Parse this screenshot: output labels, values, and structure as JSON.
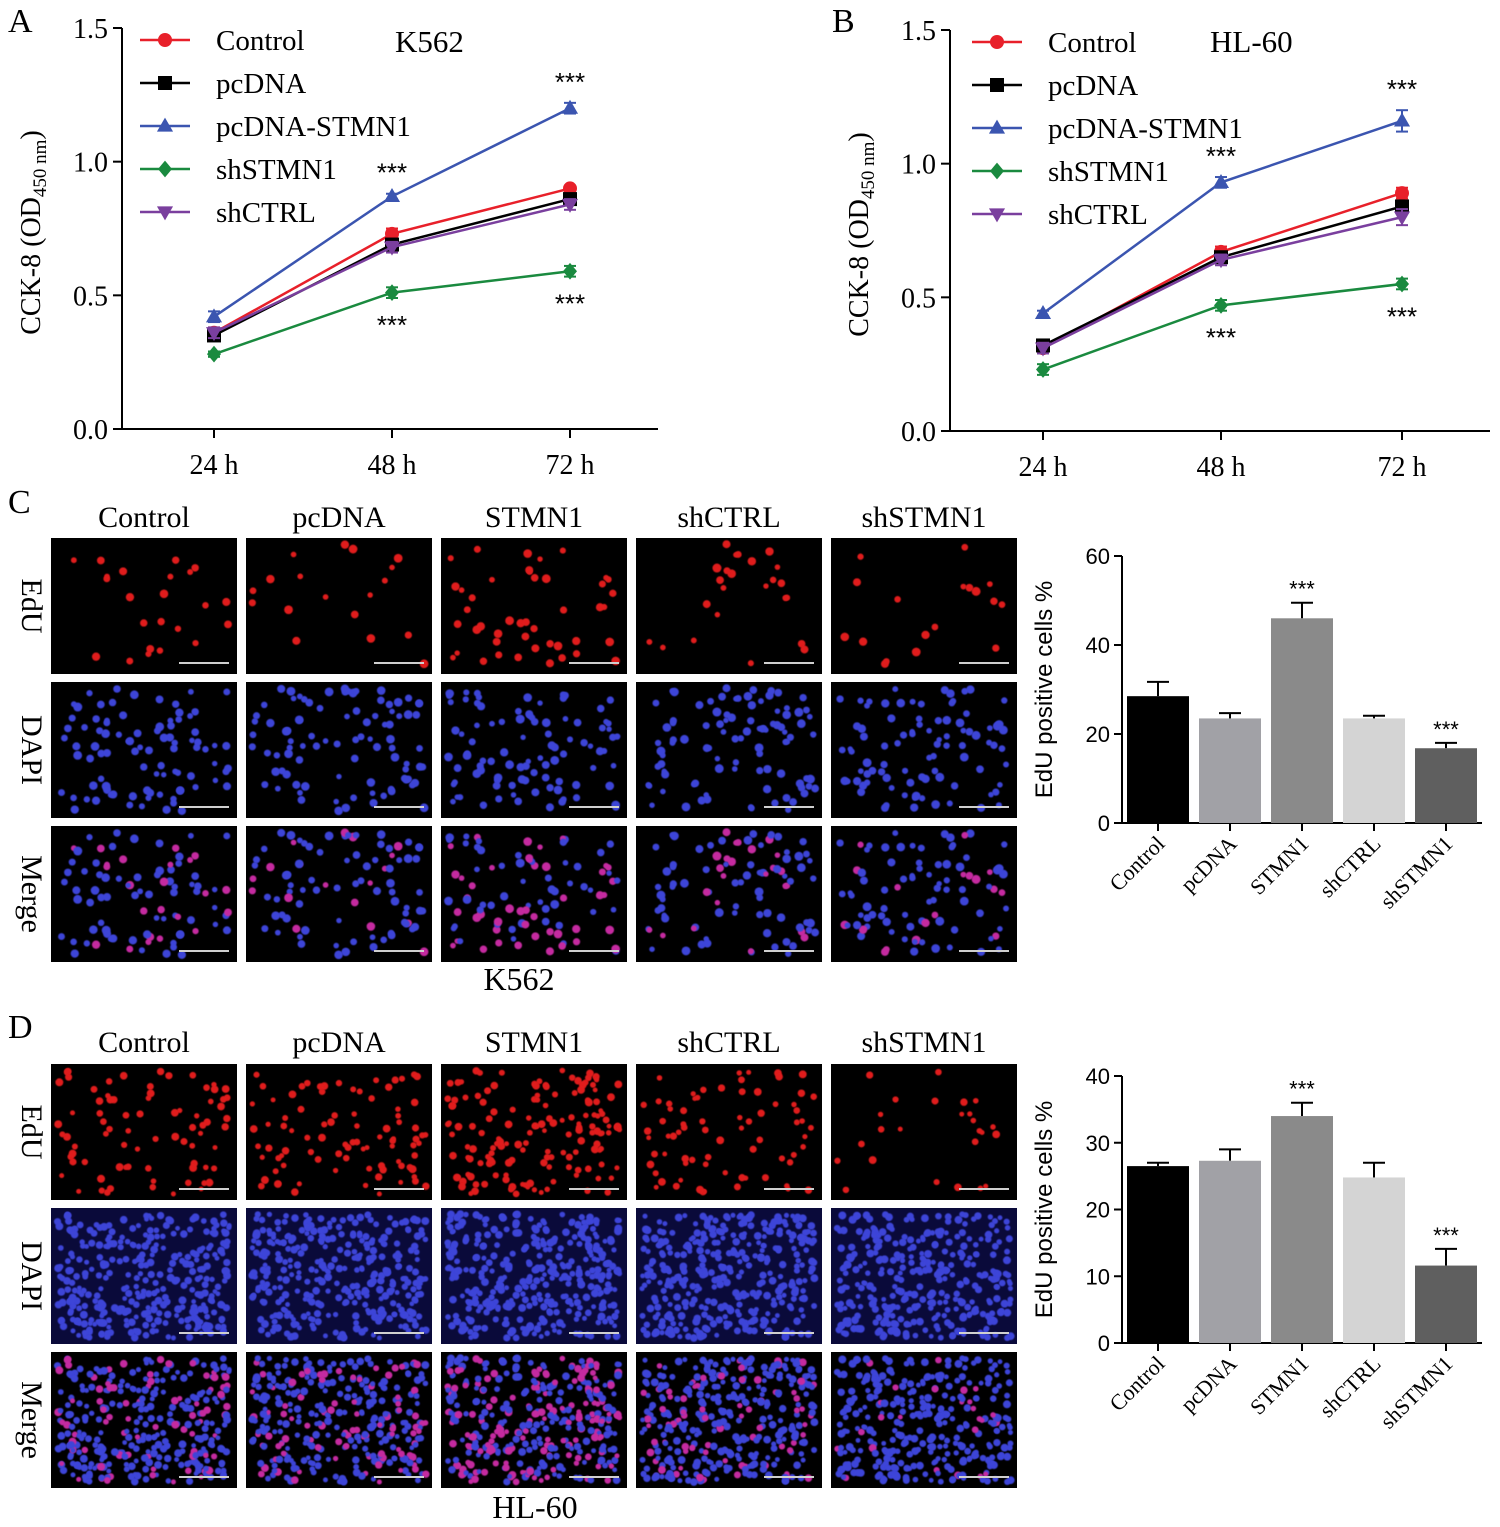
{
  "panels": {
    "A": "A",
    "B": "B",
    "C": "C",
    "D": "D"
  },
  "sig_mark": "***",
  "micro": {
    "columns": [
      "Control",
      "pcDNA",
      "STMN1",
      "shCTRL",
      "shSTMN1"
    ],
    "rows": [
      "EdU",
      "DAPI",
      "Merge"
    ],
    "captions": [
      "K562",
      "HL-60"
    ]
  },
  "colors": {
    "control": "#e8202a",
    "pcdna": "#000000",
    "stmn1": "#3b55b0",
    "shstmn1": "#1a8a3f",
    "shctrl": "#7a3f9e"
  },
  "chart_data": [
    {
      "id": "A",
      "type": "line",
      "title": "K562",
      "ylabel": "CCK-8 (OD450 nm)",
      "ylabel_main": "CCK-8 (OD",
      "ylabel_sub": "450 nm",
      "ylabel_close": ")",
      "xlabel": "",
      "categories": [
        "24 h",
        "48 h",
        "72 h"
      ],
      "ylim": [
        0,
        1.5
      ],
      "yticks": [
        0.0,
        0.5,
        1.0,
        1.5
      ],
      "ytick_labels": [
        "0.0",
        "0.5",
        "1.0",
        "1.5"
      ],
      "series": [
        {
          "name": "Control",
          "marker": "circle",
          "color": "#e8202a",
          "values": [
            0.36,
            0.73,
            0.9
          ],
          "err": [
            0.02,
            0.02,
            0.01
          ]
        },
        {
          "name": "pcDNA",
          "marker": "square",
          "color": "#000000",
          "values": [
            0.35,
            0.69,
            0.86
          ],
          "err": [
            0.02,
            0.02,
            0.02
          ]
        },
        {
          "name": "pcDNA-STMN1",
          "marker": "triangle-up",
          "color": "#3b55b0",
          "values": [
            0.42,
            0.87,
            1.2
          ],
          "err": [
            0.02,
            0.01,
            0.02
          ]
        },
        {
          "name": "shSTMN1",
          "marker": "diamond",
          "color": "#1a8a3f",
          "values": [
            0.28,
            0.51,
            0.59
          ],
          "err": [
            0.01,
            0.02,
            0.02
          ]
        },
        {
          "name": "shCTRL",
          "marker": "triangle-down",
          "color": "#7a3f9e",
          "values": [
            0.36,
            0.68,
            0.84
          ],
          "err": [
            0.02,
            0.02,
            0.02
          ]
        }
      ],
      "annotations": [
        {
          "text": "***",
          "category": "48 h",
          "series": "pcDNA-STMN1",
          "position": "above"
        },
        {
          "text": "***",
          "category": "72 h",
          "series": "pcDNA-STMN1",
          "position": "above"
        },
        {
          "text": "***",
          "category": "48 h",
          "series": "shSTMN1",
          "position": "below"
        },
        {
          "text": "***",
          "category": "72 h",
          "series": "shSTMN1",
          "position": "below"
        }
      ],
      "legend": "top-left"
    },
    {
      "id": "B",
      "type": "line",
      "title": "HL-60",
      "ylabel": "CCK-8 (OD450 nm)",
      "ylabel_main": "CCK-8 (OD",
      "ylabel_sub": "450 nm",
      "ylabel_close": ")",
      "xlabel": "",
      "categories": [
        "24 h",
        "48 h",
        "72 h"
      ],
      "ylim": [
        0,
        1.5
      ],
      "yticks": [
        0.0,
        0.5,
        1.0,
        1.5
      ],
      "ytick_labels": [
        "0.0",
        "0.5",
        "1.0",
        "1.5"
      ],
      "series": [
        {
          "name": "Control",
          "marker": "circle",
          "color": "#e8202a",
          "values": [
            0.31,
            0.67,
            0.89
          ],
          "err": [
            0.01,
            0.02,
            0.02
          ]
        },
        {
          "name": "pcDNA",
          "marker": "square",
          "color": "#000000",
          "values": [
            0.32,
            0.65,
            0.84
          ],
          "err": [
            0.02,
            0.02,
            0.02
          ]
        },
        {
          "name": "pcDNA-STMN1",
          "marker": "triangle-up",
          "color": "#3b55b0",
          "values": [
            0.44,
            0.93,
            1.16
          ],
          "err": [
            0.01,
            0.02,
            0.04
          ]
        },
        {
          "name": "shSTMN1",
          "marker": "diamond",
          "color": "#1a8a3f",
          "values": [
            0.23,
            0.47,
            0.55
          ],
          "err": [
            0.02,
            0.02,
            0.02
          ]
        },
        {
          "name": "shCTRL",
          "marker": "triangle-down",
          "color": "#7a3f9e",
          "values": [
            0.31,
            0.64,
            0.8
          ],
          "err": [
            0.02,
            0.02,
            0.03
          ]
        }
      ],
      "annotations": [
        {
          "text": "***",
          "category": "48 h",
          "series": "pcDNA-STMN1",
          "position": "above"
        },
        {
          "text": "***",
          "category": "72 h",
          "series": "pcDNA-STMN1",
          "position": "above"
        },
        {
          "text": "***",
          "category": "48 h",
          "series": "shSTMN1",
          "position": "below"
        },
        {
          "text": "***",
          "category": "72 h",
          "series": "shSTMN1",
          "position": "below"
        }
      ],
      "legend": "top-left"
    },
    {
      "id": "C-bar",
      "type": "bar",
      "title": "",
      "ylabel": "EdU positive cells %",
      "categories": [
        "Control",
        "pcDNA",
        "STMN1",
        "shCTRL",
        "shSTMN1"
      ],
      "values": [
        28.5,
        23.5,
        46,
        23.5,
        16.8
      ],
      "err": [
        3.2,
        1.2,
        3.5,
        0.6,
        1.2
      ],
      "colors": [
        "#000000",
        "#a1a1a6",
        "#8a8a8a",
        "#d4d4d4",
        "#5f5f5f"
      ],
      "significance": [
        "",
        "",
        "***",
        "",
        "***"
      ],
      "ylim": [
        0,
        60
      ],
      "yticks": [
        0,
        20,
        40,
        60
      ],
      "ytick_labels": [
        "0",
        "20",
        "40",
        "60"
      ]
    },
    {
      "id": "D-bar",
      "type": "bar",
      "title": "",
      "ylabel": "EdU positive cells %",
      "categories": [
        "Control",
        "pcDNA",
        "STMN1",
        "shCTRL",
        "shSTMN1"
      ],
      "values": [
        26.5,
        27.3,
        34,
        24.8,
        11.6
      ],
      "err": [
        0.5,
        1.7,
        2.0,
        2.2,
        2.5
      ],
      "colors": [
        "#000000",
        "#a1a1a6",
        "#8a8a8a",
        "#d4d4d4",
        "#5f5f5f"
      ],
      "significance": [
        "",
        "",
        "***",
        "",
        "***"
      ],
      "ylim": [
        0,
        40
      ],
      "yticks": [
        0,
        10,
        20,
        30,
        40
      ],
      "ytick_labels": [
        "0",
        "10",
        "20",
        "30",
        "40"
      ]
    }
  ]
}
